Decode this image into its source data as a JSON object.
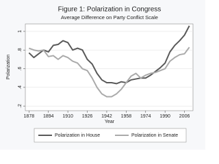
{
  "chart_data": {
    "type": "line",
    "title": "Figure 1: Polarization in Congress",
    "subtitle": "Average Difference on Party Conflict Scale",
    "x_label": "Year",
    "y_label": "Polarization",
    "x": [
      1878,
      1882,
      1886,
      1890,
      1894,
      1898,
      1902,
      1906,
      1910,
      1914,
      1918,
      1922,
      1926,
      1930,
      1934,
      1938,
      1942,
      1946,
      1950,
      1954,
      1958,
      1962,
      1966,
      1970,
      1974,
      1978,
      1982,
      1986,
      1990,
      1994,
      1998,
      2002,
      2006,
      2010
    ],
    "series": [
      {
        "name": "Polarization in House",
        "color": "#595959",
        "values": [
          0.77,
          0.72,
          0.76,
          0.8,
          0.78,
          0.85,
          0.86,
          0.9,
          0.88,
          0.8,
          0.82,
          0.8,
          0.7,
          0.65,
          0.55,
          0.48,
          0.45,
          0.45,
          0.44,
          0.46,
          0.45,
          0.48,
          0.49,
          0.5,
          0.5,
          0.53,
          0.57,
          0.61,
          0.66,
          0.78,
          0.85,
          0.9,
          0.96,
          1.06
        ]
      },
      {
        "name": "Polarization in Senate",
        "color": "#aaaaaa",
        "values": [
          0.82,
          0.8,
          0.79,
          0.8,
          0.73,
          0.74,
          0.7,
          0.74,
          0.72,
          0.68,
          0.66,
          0.6,
          0.58,
          0.5,
          0.4,
          0.33,
          0.3,
          0.3,
          0.33,
          0.38,
          0.45,
          0.52,
          0.55,
          0.5,
          0.53,
          0.55,
          0.56,
          0.58,
          0.6,
          0.68,
          0.72,
          0.75,
          0.76,
          0.83
        ]
      }
    ],
    "xlim": [
      1875,
      2013
    ],
    "xticks": [
      1878,
      1894,
      1910,
      1926,
      1942,
      1958,
      1974,
      1990,
      2006
    ],
    "ylim": [
      0.15,
      1.08
    ],
    "yticks": [
      {
        "value": 0.2,
        "label": ".2"
      },
      {
        "value": 0.4,
        "label": ".4"
      },
      {
        "value": 0.6,
        "label": ".6"
      },
      {
        "value": 0.8,
        "label": ".8"
      },
      {
        "value": 1,
        "label": "1"
      }
    ],
    "grid": true,
    "legend": "bottom"
  }
}
